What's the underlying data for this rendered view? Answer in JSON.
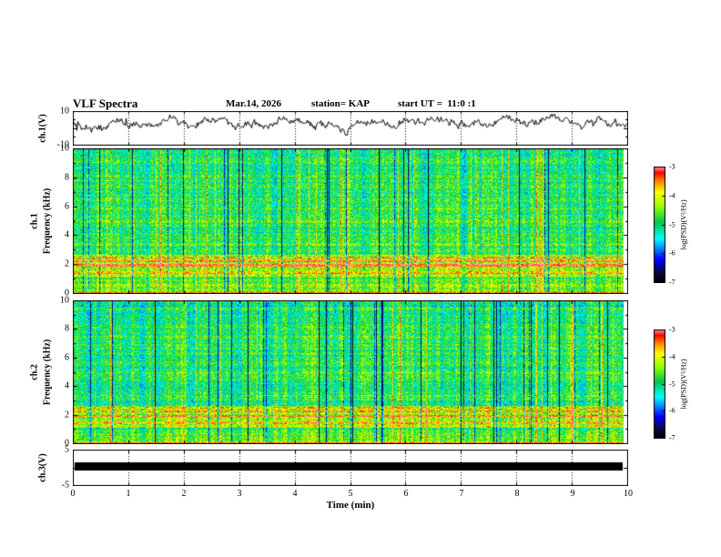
{
  "header": {
    "title": "VLF Spectra",
    "date": "Mar.14, 2026",
    "station": "station= KAP",
    "start_ut": "start UT =  11:0 :1"
  },
  "xaxis": {
    "label": "Time (min)",
    "ticks": [
      0,
      1,
      2,
      3,
      4,
      5,
      6,
      7,
      8,
      9,
      10
    ],
    "range": [
      0,
      10
    ]
  },
  "chart_data": [
    {
      "type": "line",
      "name": "ch1-waveform",
      "ylabel": "ch.1(V)",
      "ylim": [
        -10,
        10
      ],
      "yticks": [
        10,
        -10
      ],
      "xlim": [
        0,
        10
      ],
      "line_color": "#000000",
      "description": "Noisy broadband voltage trace fluctuating around +3 V for the full 10 minutes"
    },
    {
      "type": "heatmap",
      "name": "ch1-spectrogram",
      "ylabel_lines": [
        "ch.1",
        "Frequency (kHz)"
      ],
      "ylim": [
        0,
        10
      ],
      "yticks": [
        0,
        2,
        4,
        6,
        8,
        10
      ],
      "xlim": [
        0,
        10
      ],
      "colorbar": {
        "label": "log(PSD)(V²/Hz)",
        "ticks": [
          -3,
          -4,
          -5,
          -6,
          -7
        ],
        "range": [
          -7,
          -3
        ],
        "colors": [
          "#000000",
          "#0a0a3c",
          "#0000ff",
          "#00ffff",
          "#00c850",
          "#96ff00",
          "#ffff00",
          "#ff8200",
          "#ff0000",
          "#ff9696"
        ]
      },
      "description": "Broadband green/cyan noise field with vertical blue and yellow streaks, strong red horizontal bands near 1.5-2.6 kHz and bright band near 0 kHz; data ends near 9.9 min"
    },
    {
      "type": "heatmap",
      "name": "ch2-spectrogram",
      "ylabel_lines": [
        "ch.2",
        "Frequency (kHz)"
      ],
      "ylim": [
        0,
        10
      ],
      "yticks": [
        0,
        2,
        4,
        6,
        8,
        10
      ],
      "xlim": [
        0,
        10
      ],
      "colorbar": {
        "label": "log(PSD)(V²/Hz)",
        "ticks": [
          -3,
          -4,
          -5,
          -6,
          -7
        ],
        "range": [
          -7,
          -3
        ],
        "colors": [
          "#000000",
          "#0a0a3c",
          "#0000ff",
          "#00ffff",
          "#00c850",
          "#96ff00",
          "#ffff00",
          "#ff8200",
          "#ff0000",
          "#ff9696"
        ]
      },
      "description": "Broadband green/cyan noise field with vertical blue and yellow streaks and red horizontal bands near 2 kHz; data ends near 9.9 min"
    },
    {
      "type": "line",
      "name": "ch3-waveform",
      "ylabel": "ch.3(V)",
      "ylim": [
        -5,
        5
      ],
      "yticks": [
        5,
        -5
      ],
      "xlim": [
        0,
        10
      ],
      "line_color": "#000000",
      "description": "Saturated flat thick black band near 0 V spanning the full duration"
    }
  ]
}
